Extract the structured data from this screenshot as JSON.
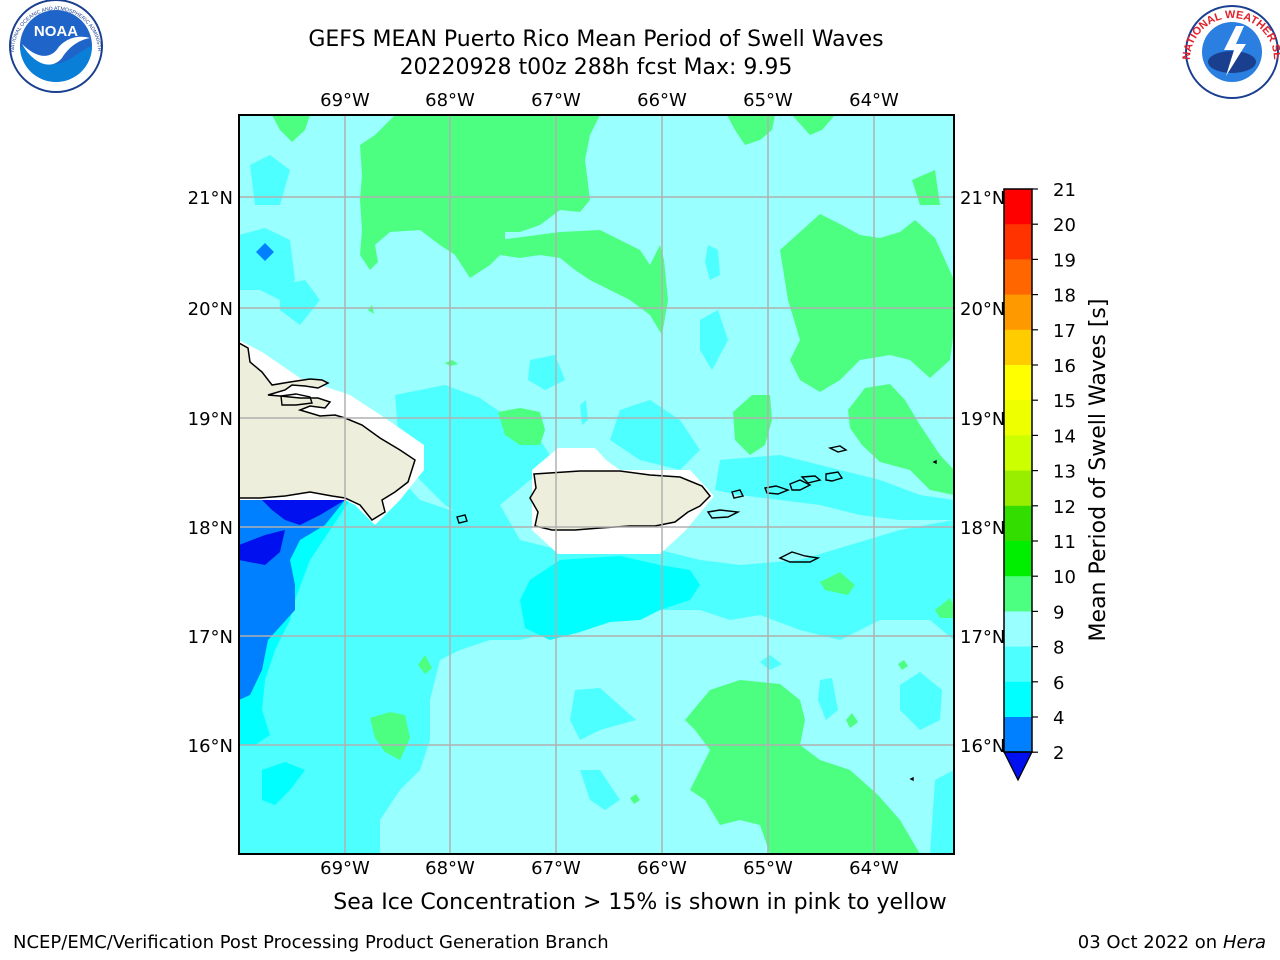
{
  "title": {
    "line1": "GEFS MEAN Puerto Rico Mean Period of Swell Waves",
    "line2": "20220928 t00z 288h fcst   Max: 9.95"
  },
  "logos": {
    "left": "NOAA",
    "left_ring": "NATIONAL OCEANIC AND ATMOSPHERIC ADMINISTRATION · U.S. DEPARTMENT OF COMMERCE",
    "right_ring": "NATIONAL WEATHER SERVICE"
  },
  "map": {
    "lon_labels": [
      "69°W",
      "68°W",
      "67°W",
      "66°W",
      "65°W",
      "64°W"
    ],
    "lat_labels": [
      "21°N",
      "20°N",
      "19°N",
      "18°N",
      "17°N",
      "16°N"
    ]
  },
  "colorbar": {
    "label": "Mean Period of Swell Waves [s]",
    "ticks": [
      "21",
      "20",
      "19",
      "18",
      "17",
      "16",
      "15",
      "14",
      "13",
      "12",
      "11",
      "10",
      "9",
      "8",
      "6",
      "4",
      "2"
    ],
    "colors": {
      "under": "#0010ee",
      "2-4": "#0080ff",
      "4-6": "#00ffff",
      "6-8": "#4dffff",
      "8-9": "#99ffff",
      "9-10": "#4dff80",
      "10-11": "#00ee00",
      "11-12": "#33dd00",
      "12-13": "#99ee00",
      "13-14": "#ccff00",
      "14-15": "#eeff00",
      "15-16": "#ffff00",
      "16-17": "#ffcc00",
      "17-18": "#ff9900",
      "18-19": "#ff6600",
      "19-20": "#ff3300",
      "20-21": "#ff0000"
    }
  },
  "footer": {
    "note": "Sea Ice Concentration > 15% is shown in pink to yellow",
    "credit": "NCEP/EMC/Verification Post Processing Product Generation Branch",
    "date": "03 Oct 2022 on",
    "machine": "Hera"
  }
}
